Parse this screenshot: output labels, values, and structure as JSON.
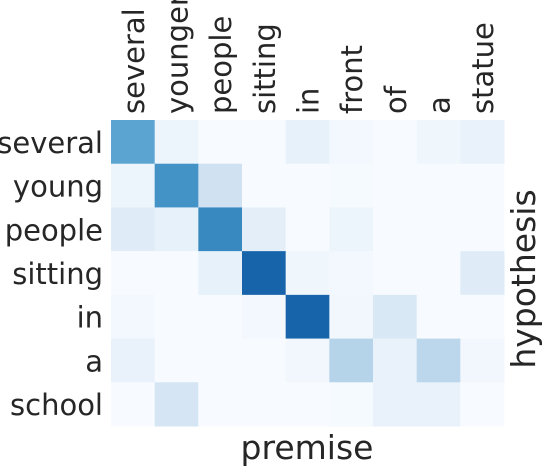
{
  "chart_data": {
    "type": "heatmap",
    "x_categories": [
      "several",
      "younger",
      "people",
      "sitting",
      "in",
      "front",
      "of",
      "a",
      "statue"
    ],
    "y_categories": [
      "several",
      "young",
      "people",
      "sitting",
      "in",
      "a",
      "school"
    ],
    "xlabel": "premise",
    "ylabel": "hypothesis",
    "values": [
      [
        0.55,
        0.05,
        0.0,
        0.0,
        0.08,
        0.02,
        0.0,
        0.04,
        0.07
      ],
      [
        0.05,
        0.62,
        0.2,
        0.0,
        0.0,
        0.01,
        0.0,
        0.0,
        0.0
      ],
      [
        0.12,
        0.08,
        0.66,
        0.1,
        0.0,
        0.05,
        0.0,
        0.0,
        0.0
      ],
      [
        0.0,
        0.0,
        0.08,
        0.8,
        0.04,
        0.02,
        0.0,
        0.0,
        0.12
      ],
      [
        0.02,
        0.0,
        0.0,
        0.02,
        0.8,
        0.03,
        0.15,
        0.0,
        0.0
      ],
      [
        0.07,
        0.0,
        0.0,
        0.0,
        0.03,
        0.3,
        0.07,
        0.28,
        0.03
      ],
      [
        0.0,
        0.17,
        0.0,
        0.0,
        0.0,
        0.01,
        0.07,
        0.07,
        0.0
      ]
    ],
    "colormap": "Blues",
    "vmin": 0,
    "vmax": 1,
    "grid": false,
    "x_tick_position": "top",
    "y_label_position": "right",
    "colors": {
      "low": "#f7fbff",
      "high": "#08306b",
      "text": "#262626"
    }
  }
}
